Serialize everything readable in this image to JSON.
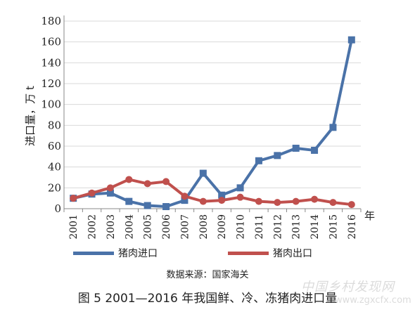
{
  "chart_data": {
    "type": "line",
    "categories": [
      "2001",
      "2002",
      "2003",
      "2004",
      "2005",
      "2006",
      "2007",
      "2008",
      "2009",
      "2010",
      "2011",
      "2012",
      "2013",
      "2014",
      "2015",
      "2016"
    ],
    "series": [
      {
        "name": "猪肉进口",
        "color": "#4a72a8",
        "marker": "square",
        "values": [
          10,
          14,
          15,
          7,
          3,
          2,
          8,
          34,
          13,
          20,
          46,
          51,
          58,
          56,
          78,
          162
        ]
      },
      {
        "name": "猪肉出口",
        "color": "#c0504d",
        "marker": "circle",
        "values": [
          10,
          15,
          20,
          28,
          24,
          26,
          12,
          7,
          8,
          11,
          7,
          6,
          7,
          9,
          6,
          4
        ]
      }
    ],
    "ylabel": "进口量，万 t",
    "xunit": "年",
    "ylim": [
      0,
      180
    ],
    "yticks": [
      0,
      20,
      40,
      60,
      80,
      100,
      120,
      140,
      160,
      180
    ],
    "legend_position": "bottom",
    "grid": true
  },
  "source_note": "数据来源：国家海关",
  "figure_caption": "图 5  2001—2016 年我国鲜、冷、冻猪肉进口量",
  "watermark": {
    "line1": "中国乡村发现网",
    "line2": "www.zgxcfx.com"
  }
}
